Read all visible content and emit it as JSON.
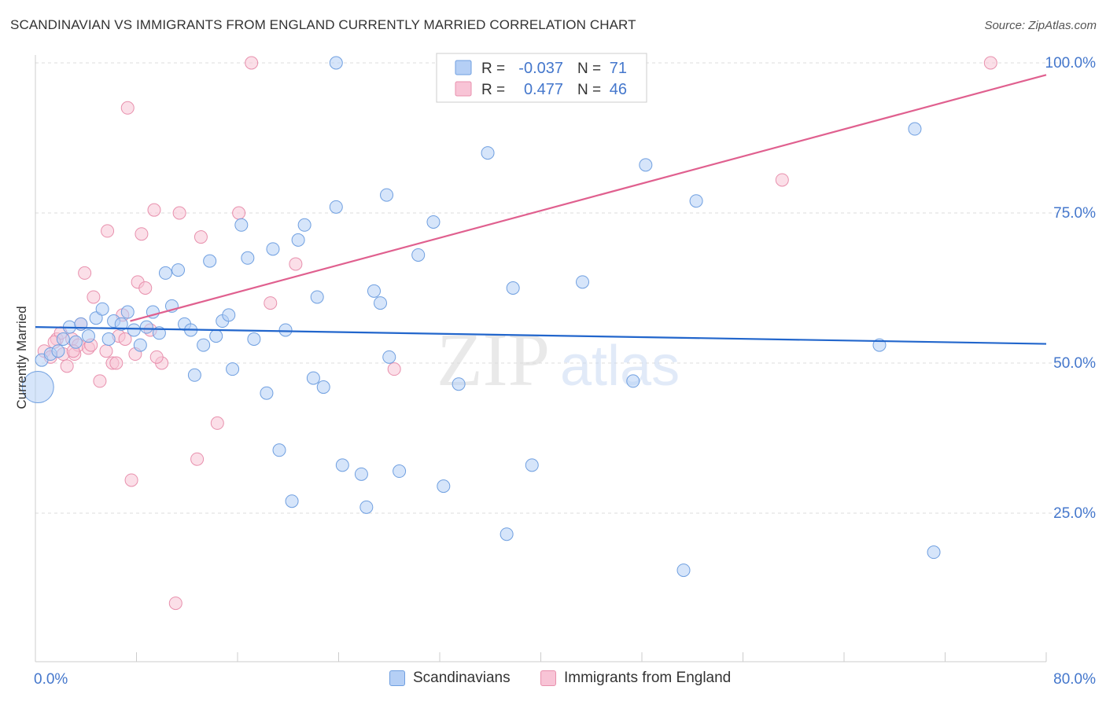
{
  "title": "SCANDINAVIAN VS IMMIGRANTS FROM ENGLAND CURRENTLY MARRIED CORRELATION CHART",
  "source": "Source: ZipAtlas.com",
  "watermark": {
    "zip": "ZIP",
    "atlas": "atlas"
  },
  "colors": {
    "blue_fill": "#b5cff5",
    "blue_stroke": "#6f9fe0",
    "blue_line": "#2266cc",
    "pink_fill": "#f8c4d6",
    "pink_stroke": "#e890ad",
    "pink_line": "#e0608f",
    "tick_text": "#4477cc",
    "grid": "#dddddd",
    "axis": "#cccccc"
  },
  "legend_top": {
    "rows": [
      {
        "r_label": "R =",
        "r_value": "-0.037",
        "n_label": "N =",
        "n_value": "71"
      },
      {
        "r_label": "R =",
        "r_value": "0.477",
        "n_label": "N =",
        "n_value": "46"
      }
    ]
  },
  "legend_bottom": {
    "series_a": "Scandinavians",
    "series_b": "Immigrants from England"
  },
  "chart_data": {
    "type": "scatter",
    "title": "SCANDINAVIAN VS IMMIGRANTS FROM ENGLAND CURRENTLY MARRIED CORRELATION CHART",
    "xlabel": "",
    "ylabel": "Currently Married",
    "xlim": [
      0,
      80
    ],
    "ylim": [
      0,
      102
    ],
    "x_tick_labels": [
      {
        "value": 0,
        "label": "0.0%"
      },
      {
        "value": 80,
        "label": "80.0%"
      }
    ],
    "y_tick_labels": [
      {
        "value": 25,
        "label": "25.0%"
      },
      {
        "value": 50,
        "label": "50.0%"
      },
      {
        "value": 75,
        "label": "75.0%"
      },
      {
        "value": 100,
        "label": "100.0%"
      }
    ],
    "grid": true,
    "series": [
      {
        "name": "Scandinavians",
        "R": -0.037,
        "N": 71,
        "trend": [
          [
            0,
            56
          ],
          [
            80,
            53.2
          ]
        ],
        "points": [
          [
            0.2,
            46,
            2.5
          ],
          [
            0.5,
            50.5,
            1
          ],
          [
            1.2,
            51.5,
            1
          ],
          [
            1.8,
            52,
            1
          ],
          [
            2.2,
            54,
            1
          ],
          [
            2.7,
            56,
            1
          ],
          [
            3.2,
            53.5,
            1
          ],
          [
            3.6,
            56.5,
            1
          ],
          [
            4.2,
            54.5,
            1
          ],
          [
            4.8,
            57.5,
            1
          ],
          [
            5.3,
            59,
            1
          ],
          [
            5.8,
            54,
            1
          ],
          [
            6.2,
            57,
            1
          ],
          [
            6.8,
            56.5,
            1
          ],
          [
            7.3,
            58.5,
            1
          ],
          [
            7.8,
            55.5,
            1
          ],
          [
            8.3,
            53,
            1
          ],
          [
            8.8,
            56,
            1
          ],
          [
            9.3,
            58.5,
            1
          ],
          [
            9.8,
            55,
            1
          ],
          [
            10.3,
            65,
            1
          ],
          [
            10.8,
            59.5,
            1
          ],
          [
            11.3,
            65.5,
            1
          ],
          [
            11.8,
            56.5,
            1
          ],
          [
            12.3,
            55.5,
            1
          ],
          [
            12.6,
            48,
            1
          ],
          [
            13.3,
            53,
            1
          ],
          [
            13.8,
            67,
            1
          ],
          [
            14.3,
            54.5,
            1
          ],
          [
            14.8,
            57,
            1
          ],
          [
            15.3,
            58,
            1
          ],
          [
            15.6,
            49,
            1
          ],
          [
            16.3,
            73,
            1
          ],
          [
            16.8,
            67.5,
            1
          ],
          [
            17.3,
            54,
            1
          ],
          [
            18.3,
            45,
            1
          ],
          [
            18.8,
            69,
            1
          ],
          [
            19.3,
            35.5,
            1
          ],
          [
            19.8,
            55.5,
            1
          ],
          [
            20.3,
            27,
            1
          ],
          [
            20.8,
            70.5,
            1
          ],
          [
            21.3,
            73,
            1
          ],
          [
            22.0,
            47.5,
            1
          ],
          [
            22.3,
            61,
            1
          ],
          [
            22.8,
            46,
            1
          ],
          [
            23.8,
            76,
            1
          ],
          [
            24.3,
            33,
            1
          ],
          [
            25.8,
            31.5,
            1
          ],
          [
            26.2,
            26,
            1
          ],
          [
            26.8,
            62,
            1
          ],
          [
            27.3,
            60,
            1
          ],
          [
            27.8,
            78,
            1
          ],
          [
            28.0,
            51,
            1
          ],
          [
            28.8,
            32,
            1
          ],
          [
            30.3,
            68,
            1
          ],
          [
            31.5,
            73.5,
            1
          ],
          [
            32.3,
            29.5,
            1
          ],
          [
            33.5,
            46.5,
            1
          ],
          [
            35.8,
            85,
            1
          ],
          [
            37.8,
            62.5,
            1
          ],
          [
            37.3,
            21.5,
            1
          ],
          [
            39.3,
            33,
            1
          ],
          [
            43.3,
            63.5,
            1
          ],
          [
            47.3,
            47,
            1
          ],
          [
            48.3,
            83,
            1
          ],
          [
            51.3,
            15.5,
            1
          ],
          [
            52.3,
            77,
            1
          ],
          [
            66.8,
            53,
            1
          ],
          [
            69.6,
            89,
            1
          ],
          [
            71.1,
            18.5,
            1
          ],
          [
            23.8,
            100,
            1
          ]
        ]
      },
      {
        "name": "Immigrants from England",
        "R": 0.477,
        "N": 46,
        "trend": [
          [
            7.5,
            57
          ],
          [
            80,
            98
          ]
        ],
        "points": [
          [
            0.7,
            52,
            1
          ],
          [
            1.2,
            51,
            1
          ],
          [
            1.7,
            54,
            1
          ],
          [
            2.2,
            51.5,
            1
          ],
          [
            2.5,
            49.5,
            1
          ],
          [
            2.9,
            54,
            1
          ],
          [
            3.1,
            51.5,
            1
          ],
          [
            3.4,
            53,
            1
          ],
          [
            3.6,
            56.5,
            1
          ],
          [
            3.9,
            65,
            1
          ],
          [
            4.2,
            52.5,
            1
          ],
          [
            4.6,
            61,
            1
          ],
          [
            5.1,
            47,
            1
          ],
          [
            5.6,
            52,
            1
          ],
          [
            5.7,
            72,
            1
          ],
          [
            6.1,
            50,
            1
          ],
          [
            6.6,
            54.5,
            1
          ],
          [
            6.9,
            58,
            1
          ],
          [
            7.1,
            54,
            1
          ],
          [
            7.3,
            92.5,
            1
          ],
          [
            7.6,
            30.5,
            1
          ],
          [
            7.9,
            51.5,
            1
          ],
          [
            8.1,
            63.5,
            1
          ],
          [
            8.4,
            71.5,
            1
          ],
          [
            8.7,
            62.5,
            1
          ],
          [
            9.1,
            55.5,
            1
          ],
          [
            9.4,
            75.5,
            1
          ],
          [
            10.0,
            50,
            1
          ],
          [
            11.1,
            10,
            1
          ],
          [
            11.4,
            75,
            1
          ],
          [
            12.8,
            34,
            1
          ],
          [
            13.1,
            71,
            1
          ],
          [
            14.4,
            40,
            1
          ],
          [
            16.1,
            75,
            1
          ],
          [
            17.1,
            100,
            1
          ],
          [
            18.6,
            60,
            1
          ],
          [
            20.6,
            66.5,
            1
          ],
          [
            28.4,
            49,
            1
          ],
          [
            59.1,
            80.5,
            1
          ],
          [
            75.6,
            100,
            1
          ],
          [
            2.0,
            55,
            1
          ],
          [
            4.4,
            53,
            1
          ],
          [
            6.4,
            50,
            1
          ],
          [
            9.6,
            51,
            1
          ],
          [
            1.5,
            53.5,
            1
          ],
          [
            3.0,
            52,
            1
          ]
        ]
      }
    ]
  }
}
